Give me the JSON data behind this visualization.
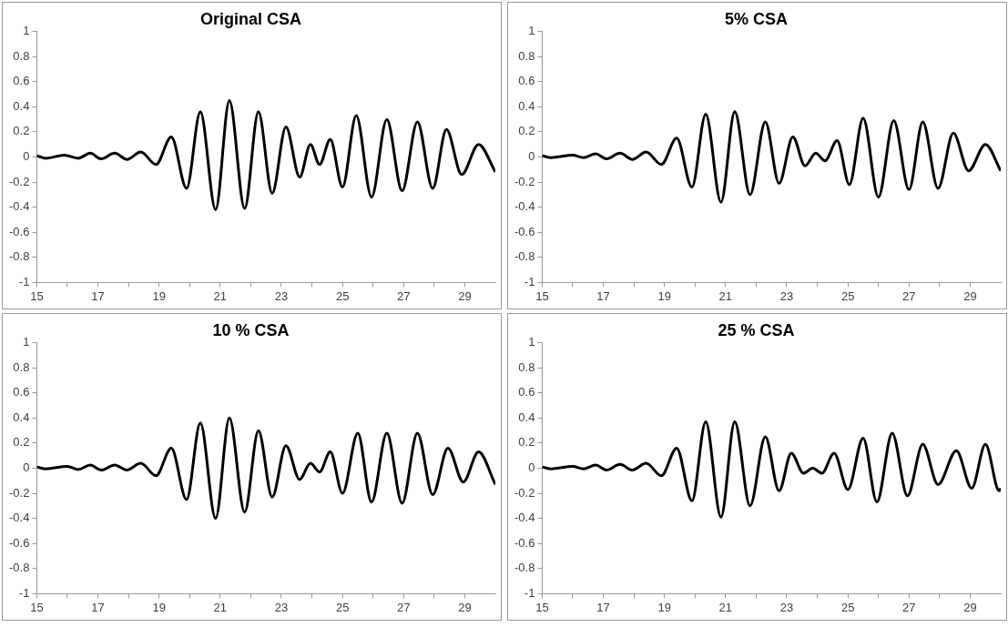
{
  "chart_data": [
    {
      "type": "line",
      "title": "Original CSA",
      "color": "#000000",
      "marker": "none",
      "xlim": [
        15,
        30
      ],
      "ylim": [
        -1,
        1
      ],
      "xticks": [
        15,
        {
          "value": 16,
          "label": null
        },
        17,
        {
          "value": 18,
          "label": null
        },
        19,
        {
          "value": 20,
          "label": null
        },
        21,
        {
          "value": 22,
          "label": null
        },
        23,
        {
          "value": 24,
          "label": null
        },
        25,
        {
          "value": 26,
          "label": null
        },
        27,
        {
          "value": 28,
          "label": null
        },
        29
      ],
      "yticks": [
        -1,
        -0.8,
        -0.6,
        -0.4,
        -0.2,
        0,
        0.2,
        0.4,
        0.6,
        0.8,
        1
      ],
      "x": [
        15,
        15.3,
        15.9,
        16.35,
        16.75,
        17.1,
        17.55,
        17.95,
        18.4,
        18.9,
        19.4,
        19.9,
        20.35,
        20.85,
        21.3,
        21.8,
        22.25,
        22.7,
        23.15,
        23.6,
        23.95,
        24.25,
        24.6,
        25,
        25.45,
        25.95,
        26.45,
        26.95,
        27.45,
        27.95,
        28.4,
        28.9,
        29.45,
        30
      ],
      "values": [
        0.01,
        -0.01,
        0.015,
        -0.01,
        0.03,
        -0.015,
        0.03,
        -0.02,
        0.04,
        -0.06,
        0.16,
        -0.25,
        0.36,
        -0.42,
        0.45,
        -0.41,
        0.36,
        -0.29,
        0.24,
        -0.16,
        0.1,
        -0.06,
        0.14,
        -0.24,
        0.33,
        -0.32,
        0.3,
        -0.27,
        0.28,
        -0.25,
        0.22,
        -0.14,
        0.1,
        -0.12
      ]
    },
    {
      "type": "line",
      "title": "5% CSA",
      "color": "#000000",
      "marker": "none",
      "xlim": [
        15,
        30
      ],
      "ylim": [
        -1,
        1
      ],
      "xticks": [
        15,
        {
          "value": 16,
          "label": null
        },
        17,
        {
          "value": 18,
          "label": null
        },
        19,
        {
          "value": 20,
          "label": null
        },
        21,
        {
          "value": 22,
          "label": null
        },
        23,
        {
          "value": 24,
          "label": null
        },
        25,
        {
          "value": 26,
          "label": null
        },
        27,
        {
          "value": 28,
          "label": null
        },
        29
      ],
      "yticks": [
        -1,
        -0.8,
        -0.6,
        -0.4,
        -0.2,
        0,
        0.2,
        0.4,
        0.6,
        0.8,
        1
      ],
      "x": [
        15,
        15.3,
        16,
        16.35,
        16.75,
        17.1,
        17.55,
        17.95,
        18.4,
        18.9,
        19.4,
        19.9,
        20.35,
        20.85,
        21.3,
        21.8,
        22.3,
        22.75,
        23.2,
        23.6,
        23.95,
        24.25,
        24.65,
        25.05,
        25.5,
        26,
        26.5,
        27,
        27.45,
        27.95,
        28.45,
        28.95,
        29.5,
        30
      ],
      "values": [
        0.01,
        -0.005,
        0.015,
        -0.005,
        0.025,
        -0.015,
        0.03,
        -0.02,
        0.04,
        -0.06,
        0.15,
        -0.24,
        0.34,
        -0.36,
        0.36,
        -0.3,
        0.28,
        -0.21,
        0.16,
        -0.07,
        0.03,
        -0.03,
        0.13,
        -0.22,
        0.31,
        -0.32,
        0.29,
        -0.26,
        0.28,
        -0.25,
        0.19,
        -0.11,
        0.1,
        -0.11
      ]
    },
    {
      "type": "line",
      "title": "10 % CSA",
      "color": "#000000",
      "marker": "none",
      "xlim": [
        15,
        30
      ],
      "ylim": [
        -1,
        1
      ],
      "xticks": [
        15,
        {
          "value": 16,
          "label": null
        },
        17,
        {
          "value": 18,
          "label": null
        },
        19,
        {
          "value": 20,
          "label": null
        },
        21,
        {
          "value": 22,
          "label": null
        },
        23,
        {
          "value": 24,
          "label": null
        },
        25,
        {
          "value": 26,
          "label": null
        },
        27,
        {
          "value": 28,
          "label": null
        },
        29
      ],
      "yticks": [
        -1,
        -0.8,
        -0.6,
        -0.4,
        -0.2,
        0,
        0.2,
        0.4,
        0.6,
        0.8,
        1
      ],
      "x": [
        15,
        15.3,
        16,
        16.35,
        16.75,
        17.1,
        17.55,
        17.95,
        18.4,
        18.9,
        19.4,
        19.9,
        20.35,
        20.85,
        21.3,
        21.8,
        22.25,
        22.7,
        23.15,
        23.6,
        23.95,
        24.25,
        24.6,
        25,
        25.5,
        25.95,
        26.45,
        26.95,
        27.45,
        27.95,
        28.45,
        28.95,
        29.45,
        30
      ],
      "values": [
        0.01,
        -0.005,
        0.015,
        -0.01,
        0.025,
        -0.015,
        0.025,
        -0.015,
        0.04,
        -0.06,
        0.16,
        -0.25,
        0.36,
        -0.4,
        0.4,
        -0.35,
        0.3,
        -0.23,
        0.18,
        -0.09,
        0.04,
        -0.03,
        0.13,
        -0.2,
        0.28,
        -0.27,
        0.28,
        -0.28,
        0.28,
        -0.21,
        0.16,
        -0.11,
        0.13,
        -0.13
      ]
    },
    {
      "type": "line",
      "title": "25 % CSA",
      "color": "#000000",
      "marker": "none",
      "xlim": [
        15,
        30
      ],
      "ylim": [
        -1,
        1
      ],
      "xticks": [
        15,
        {
          "value": 16,
          "label": null
        },
        17,
        {
          "value": 18,
          "label": null
        },
        19,
        {
          "value": 20,
          "label": null
        },
        21,
        {
          "value": 22,
          "label": null
        },
        23,
        {
          "value": 24,
          "label": null
        },
        25,
        {
          "value": 26,
          "label": null
        },
        27,
        {
          "value": 28,
          "label": null
        },
        29
      ],
      "yticks": [
        -1,
        -0.8,
        -0.6,
        -0.4,
        -0.2,
        0,
        0.2,
        0.4,
        0.6,
        0.8,
        1
      ],
      "x": [
        15,
        15.3,
        16,
        16.35,
        16.75,
        17.1,
        17.55,
        17.95,
        18.4,
        18.9,
        19.4,
        19.9,
        20.35,
        20.85,
        21.3,
        21.8,
        22.3,
        22.75,
        23.15,
        23.55,
        23.85,
        24.15,
        24.55,
        25,
        25.5,
        25.95,
        26.45,
        26.95,
        27.45,
        27.95,
        28.55,
        29.05,
        29.5,
        29.95,
        30
      ],
      "values": [
        0.01,
        -0.005,
        0.015,
        -0.005,
        0.025,
        -0.015,
        0.03,
        -0.015,
        0.04,
        -0.06,
        0.16,
        -0.26,
        0.37,
        -0.39,
        0.37,
        -0.3,
        0.25,
        -0.18,
        0.12,
        -0.04,
        0,
        -0.04,
        0.12,
        -0.17,
        0.24,
        -0.27,
        0.28,
        -0.22,
        0.19,
        -0.13,
        0.14,
        -0.16,
        0.19,
        -0.18,
        -0.16
      ]
    }
  ]
}
